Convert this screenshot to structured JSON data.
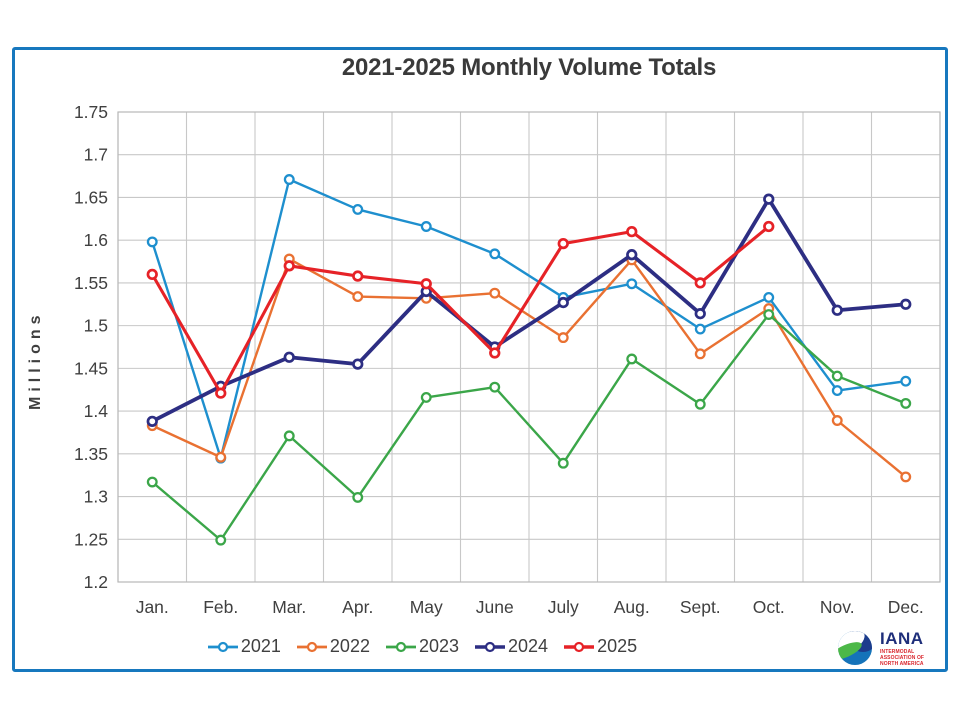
{
  "chart_data": {
    "type": "line",
    "title": "2021-2025 Monthly Volume Totals",
    "ylabel": "Millions",
    "categories": [
      "Jan.",
      "Feb.",
      "Mar.",
      "Apr.",
      "May",
      "June",
      "July",
      "Aug.",
      "Sept.",
      "Oct.",
      "Nov.",
      "Dec."
    ],
    "ylim": [
      1.2,
      1.75
    ],
    "y_tick_step": 0.05,
    "y_ticks": [
      "1.75",
      "1.7",
      "1.65",
      "1.6",
      "1.55",
      "1.5",
      "1.45",
      "1.4",
      "1.35",
      "1.3",
      "1.25",
      "1.2"
    ],
    "grid": true,
    "legend_position": "bottom",
    "series": [
      {
        "name": "2021",
        "color": "#1E8FCE",
        "line_width": 2.4,
        "values": [
          1.598,
          1.345,
          1.671,
          1.636,
          1.616,
          1.584,
          1.533,
          1.549,
          1.496,
          1.533,
          1.424,
          1.435
        ]
      },
      {
        "name": "2022",
        "color": "#E97132",
        "line_width": 2.4,
        "values": [
          1.383,
          1.346,
          1.578,
          1.534,
          1.532,
          1.538,
          1.486,
          1.577,
          1.467,
          1.52,
          1.389,
          1.323
        ]
      },
      {
        "name": "2023",
        "color": "#3BA649",
        "line_width": 2.4,
        "values": [
          1.317,
          1.249,
          1.371,
          1.299,
          1.416,
          1.428,
          1.339,
          1.461,
          1.408,
          1.513,
          1.441,
          1.409
        ]
      },
      {
        "name": "2024",
        "color": "#2D2E83",
        "line_width": 3.8,
        "values": [
          1.388,
          1.429,
          1.463,
          1.455,
          1.54,
          1.475,
          1.527,
          1.583,
          1.514,
          1.648,
          1.518,
          1.525
        ]
      },
      {
        "name": "2025",
        "color": "#E62227",
        "line_width": 3.1,
        "values": [
          1.56,
          1.421,
          1.57,
          1.558,
          1.549,
          1.468,
          1.596,
          1.61,
          1.55,
          1.616
        ]
      }
    ]
  },
  "style": {
    "grid_color": "#C8C8C8",
    "axis_text_color": "#404040",
    "frame_border_color": "#1778BE"
  },
  "logo": {
    "name": "IANA",
    "tagline": "INTERMODAL ASSOCIATION OF NORTH AMERICA"
  }
}
